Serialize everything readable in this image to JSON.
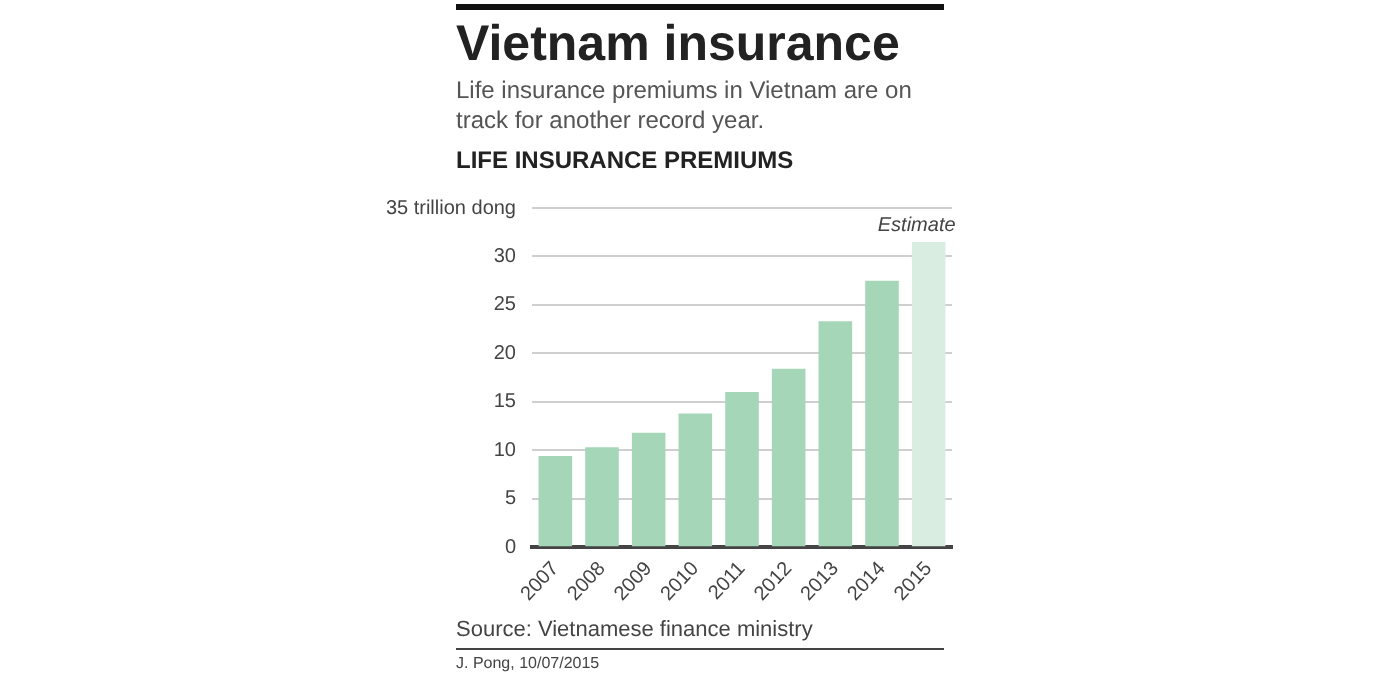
{
  "chart_data": {
    "type": "bar",
    "title": "Vietnam insurance",
    "subtitle": "Life insurance premiums in Vietnam are on track for another record year.",
    "ylabel": "LIFE INSURANCE PREMIUMS",
    "categories": [
      "2007",
      "2008",
      "2009",
      "2010",
      "2011",
      "2012",
      "2013",
      "2014",
      "2015"
    ],
    "values": [
      9.4,
      10.3,
      11.8,
      13.8,
      16.0,
      18.4,
      23.3,
      27.5,
      31.5
    ],
    "colors": [
      "#a6d6b8",
      "#a6d6b8",
      "#a6d6b8",
      "#a6d6b8",
      "#a6d6b8",
      "#a6d6b8",
      "#a6d6b8",
      "#a6d6b8",
      "#d9eee1"
    ],
    "ylim": [
      0,
      35
    ],
    "yticks": [
      0,
      5,
      10,
      15,
      20,
      25,
      30,
      {
        "value": 35,
        "label": "35 trillion dong"
      }
    ],
    "grid": "y",
    "legend": false,
    "annotations": [
      {
        "text": "Estimate",
        "x": "2015",
        "y": 31.5
      },
      "Source: Vietnamese finance ministry",
      "J. Pong, 10/07/2015"
    ]
  }
}
